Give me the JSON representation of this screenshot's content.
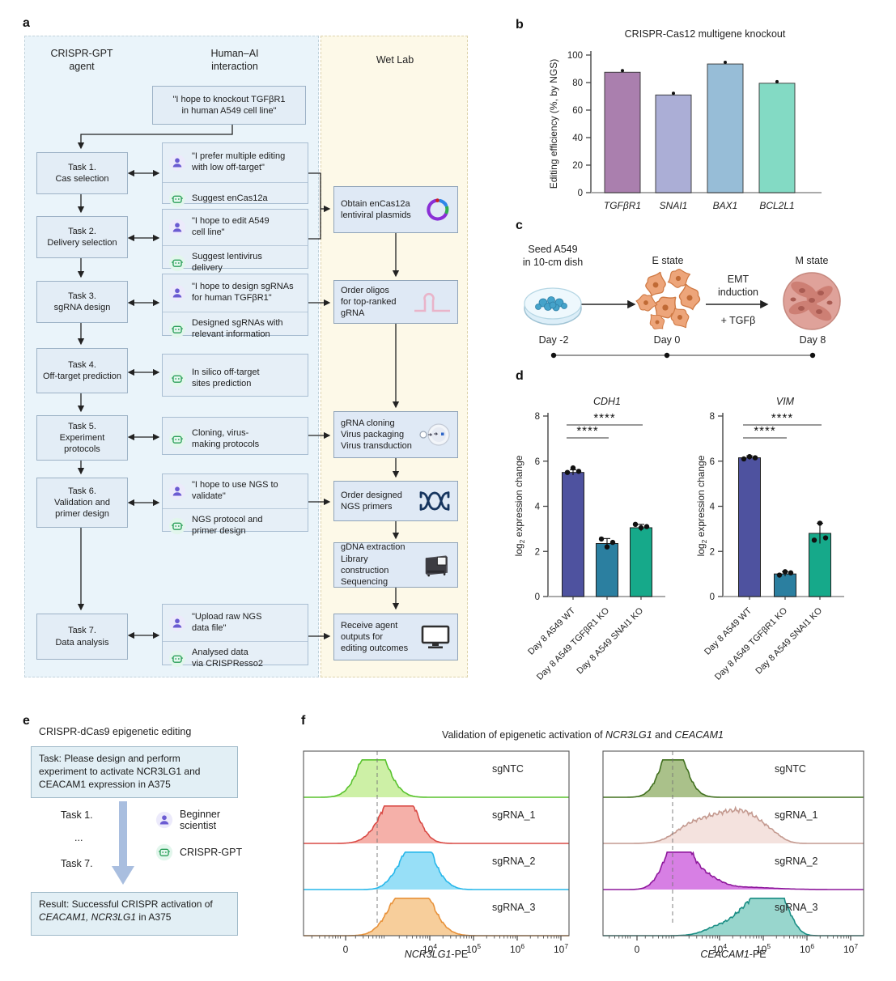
{
  "panel_labels": {
    "a": "a",
    "b": "b",
    "c": "c",
    "d": "d",
    "e": "e",
    "f": "f"
  },
  "panel_a": {
    "columns": [
      "CRISPR-GPT\nagent",
      "Human–AI\ninteraction",
      "Wet Lab"
    ],
    "initial_prompt": "\"I hope to knockout TGFβR1\nin human A549 cell line\"",
    "tasks": [
      "Task 1.\nCas selection",
      "Task 2.\nDelivery selection",
      "Task 3.\nsgRNA design",
      "Task 4.\nOff-target prediction",
      "Task 5.\nExperiment\nprotocols",
      "Task 6.\nValidation and\nprimer design",
      "Task 7.\nData analysis"
    ],
    "dialogs": [
      {
        "messages": [
          {
            "icon": "user-icon",
            "text": "\"I prefer multiple editing\nwith low off-target\""
          },
          {
            "icon": "robot-icon",
            "text": "Suggest enCas12a"
          }
        ]
      },
      {
        "messages": [
          {
            "icon": "user-icon",
            "text": "\"I hope to edit A549\ncell line\""
          },
          {
            "icon": "robot-icon",
            "text": "Suggest lentivirus\ndelivery"
          }
        ]
      },
      {
        "messages": [
          {
            "icon": "user-icon",
            "text": "\"I hope to design sgRNAs\nfor human TGFβR1\""
          },
          {
            "icon": "robot-icon",
            "text": "Designed sgRNAs with\nrelevant information"
          }
        ]
      },
      {
        "messages": [
          {
            "icon": "robot-icon",
            "text": "In silico off-target\nsites prediction"
          }
        ]
      },
      {
        "messages": [
          {
            "icon": "robot-icon",
            "text": "Cloning, virus-\nmaking protocols"
          }
        ]
      },
      {
        "messages": [
          {
            "icon": "user-icon",
            "text": "\"I hope to use NGS to\nvalidate\""
          },
          {
            "icon": "robot-icon",
            "text": "NGS protocol and\nprimer design"
          }
        ]
      },
      {
        "messages": [
          {
            "icon": "user-icon",
            "text": "\"Upload raw NGS\ndata file\""
          },
          {
            "icon": "robot-icon",
            "text": "Analysed data\nvia CRISPResso2"
          }
        ]
      }
    ],
    "wet_lab_steps": [
      {
        "text": "Obtain enCas12a\nlentiviral plasmids",
        "icon": "plasmid-icon"
      },
      {
        "text": "Order oligos\nfor top-ranked\ngRNA",
        "icon": "grna-hairpin-icon"
      },
      {
        "text": "gRNA cloning\nVirus packaging\nVirus transduction",
        "icon": "cell-icon"
      },
      {
        "text": "Order designed\nNGS primers",
        "icon": "dna-icon"
      },
      {
        "text": "gDNA extraction\nLibrary construction\nSequencing",
        "icon": "sequencer-icon"
      },
      {
        "text": "Receive agent\noutputs for\nediting outcomes",
        "icon": "monitor-icon"
      }
    ]
  },
  "panel_c": {
    "seed_label": "Seed A549\nin 10-cm dish",
    "e_state": "E state",
    "m_state": "M state",
    "emt": "EMT\ninduction",
    "tgfb": "+ TGFβ",
    "days": [
      "Day -2",
      "Day 0",
      "Day 8"
    ]
  },
  "panel_e": {
    "title": "CRISPR-dCas9 epigenetic editing",
    "task_box": "Task: Please design and perform experiment to activate NCR3LG1 and CEACAM1 expression in A375",
    "steps": [
      "Task 1.",
      "...",
      "Task 7."
    ],
    "actors": [
      {
        "icon": "user-icon",
        "label": "Beginner\nscientist"
      },
      {
        "icon": "robot-icon",
        "label": "CRISPR-GPT"
      }
    ],
    "result_parts": {
      "prefix": "Result: Successful CRISPR activation of ",
      "genes": "CEACAM1, NCR3LG1",
      "suffix": " in A375"
    }
  },
  "panel_f": {
    "title_parts": {
      "p1": "Validation of epigenetic activation of ",
      "g1": "NCR3LG1",
      "p2": " and ",
      "g2": "CEACAM1"
    }
  },
  "icon_colors": {
    "user-icon": "#6b5bd2",
    "robot-icon": "#2ba05a"
  },
  "chart_data": [
    {
      "id": "b",
      "type": "bar",
      "title": "CRISPR-Cas12 multigene knockout",
      "ylabel": "Editing efficiency (%, by NGS)",
      "ylim": [
        0,
        100
      ],
      "yticks": [
        0,
        20,
        40,
        60,
        80,
        100
      ],
      "categories": [
        "TGFβR1",
        "SNAI1",
        "BAX1",
        "BCL2L1"
      ],
      "values": [
        87.5,
        71,
        93.5,
        79.5
      ],
      "errors": [
        1.2,
        1.0,
        0.8,
        1.0
      ],
      "colors": [
        "#aa7fae",
        "#abaed6",
        "#97bdd7",
        "#83dac4"
      ],
      "italic_categories": true
    },
    {
      "id": "d-CDH1",
      "type": "bar",
      "title": "CDH1",
      "italic_title": true,
      "ylabel_parts": {
        "pre": "log",
        "sub": "2",
        "post": " expression change"
      },
      "ylim": [
        0,
        8
      ],
      "yticks": [
        0,
        2,
        4,
        6,
        8
      ],
      "categories": [
        "Day 8 A549 WT",
        "Day 8 A549 TGFβR1 KO",
        "Day 8 A549 SNAI1 KO"
      ],
      "values": [
        5.5,
        2.35,
        3.05
      ],
      "errors": [
        0.12,
        0.22,
        0.15
      ],
      "points": [
        [
          5.5,
          5.7,
          5.55
        ],
        [
          2.55,
          2.2,
          2.4
        ],
        [
          3.2,
          3.05,
          3.1
        ]
      ],
      "colors": [
        "#4e529f",
        "#2b7fa0",
        "#16a98a"
      ],
      "significance": [
        {
          "from": 0,
          "to": 1,
          "label": "****"
        },
        {
          "from": 0,
          "to": 2,
          "label": "****"
        }
      ]
    },
    {
      "id": "d-VIM",
      "type": "bar",
      "title": "VIM",
      "italic_title": true,
      "ylabel_parts": {
        "pre": "log",
        "sub": "2",
        "post": " expression change"
      },
      "ylim": [
        0,
        8
      ],
      "yticks": [
        0,
        2,
        4,
        6,
        8
      ],
      "categories": [
        "Day 8 A549 WT",
        "Day 8 A549 TGFβR1 KO",
        "Day 8 A549 SNAI1 KO"
      ],
      "values": [
        6.15,
        1.0,
        2.8
      ],
      "errors": [
        0.08,
        0.1,
        0.45
      ],
      "points": [
        [
          6.1,
          6.2,
          6.15
        ],
        [
          0.95,
          1.1,
          1.05
        ],
        [
          2.5,
          3.25,
          2.6
        ]
      ],
      "colors": [
        "#4e529f",
        "#2b7fa0",
        "#16a98a"
      ],
      "significance": [
        {
          "from": 0,
          "to": 1,
          "label": "****"
        },
        {
          "from": 0,
          "to": 2,
          "label": "****"
        }
      ]
    },
    {
      "id": "f-left",
      "type": "histogram",
      "xlabel_gene": "NCR3LG1",
      "xlabel_suffix": "-PE",
      "xticks": [
        "0",
        "10^4",
        "10^5",
        "10^6",
        "10^7"
      ],
      "series": [
        {
          "label": "sgNTC",
          "stroke": "#58c22d",
          "fill": "#c9ef9e",
          "bumps": [
            [
              0.225,
              0.045,
              0.55
            ],
            [
              0.262,
              0.035,
              1.0
            ],
            [
              0.305,
              0.045,
              0.55
            ]
          ]
        },
        {
          "label": "sgRNA_1",
          "stroke": "#d94a45",
          "fill": "#f4a9a2",
          "bumps": [
            [
              0.3,
              0.05,
              0.45
            ],
            [
              0.352,
              0.042,
              1.0
            ],
            [
              0.4,
              0.045,
              0.75
            ]
          ]
        },
        {
          "label": "sgRNA_2",
          "stroke": "#27b7ea",
          "fill": "#8edcf6",
          "bumps": [
            [
              0.365,
              0.04,
              0.5
            ],
            [
              0.415,
              0.032,
              0.95
            ],
            [
              0.452,
              0.032,
              1.0
            ],
            [
              0.5,
              0.04,
              0.35
            ]
          ]
        },
        {
          "label": "sgRNA_3",
          "stroke": "#e8923a",
          "fill": "#f6ca92",
          "bumps": [
            [
              0.345,
              0.05,
              0.6
            ],
            [
              0.4,
              0.045,
              1.0
            ],
            [
              0.45,
              0.04,
              0.72
            ],
            [
              0.5,
              0.045,
              0.25
            ]
          ]
        }
      ]
    },
    {
      "id": "f-right",
      "type": "histogram",
      "xlabel_gene": "CEACAM1",
      "xlabel_suffix": "-PE",
      "xticks": [
        "0",
        "10^4",
        "10^5",
        "10^6",
        "10^7"
      ],
      "series": [
        {
          "label": "sgNTC",
          "stroke": "#41701f",
          "fill": "#a3bc80",
          "bumps": [
            [
              0.235,
              0.04,
              0.55
            ],
            [
              0.272,
              0.033,
              1.0
            ],
            [
              0.31,
              0.04,
              0.45
            ]
          ]
        },
        {
          "label": "sgRNA_1",
          "stroke": "#c49a90",
          "fill": "#f3e0db",
          "bumps": [
            [
              0.32,
              0.06,
              0.3
            ],
            [
              0.41,
              0.07,
              0.5
            ],
            [
              0.5,
              0.06,
              0.55
            ],
            [
              0.575,
              0.05,
              0.48
            ],
            [
              0.65,
              0.04,
              0.2
            ]
          ]
        },
        {
          "label": "sgRNA_2",
          "stroke": "#8e189c",
          "fill": "#d474e2",
          "bumps": [
            [
              0.245,
              0.04,
              0.55
            ],
            [
              0.288,
              0.032,
              1.0
            ],
            [
              0.33,
              0.04,
              0.6
            ],
            [
              0.4,
              0.05,
              0.3
            ],
            [
              0.52,
              0.12,
              0.07
            ]
          ]
        },
        {
          "label": "sgRNA_3",
          "stroke": "#1b8e85",
          "fill": "#8fd2c9",
          "bumps": [
            [
              0.46,
              0.06,
              0.3
            ],
            [
              0.555,
              0.045,
              0.65
            ],
            [
              0.615,
              0.035,
              0.9
            ],
            [
              0.655,
              0.03,
              1.0
            ],
            [
              0.7,
              0.035,
              0.6
            ]
          ]
        }
      ]
    }
  ]
}
